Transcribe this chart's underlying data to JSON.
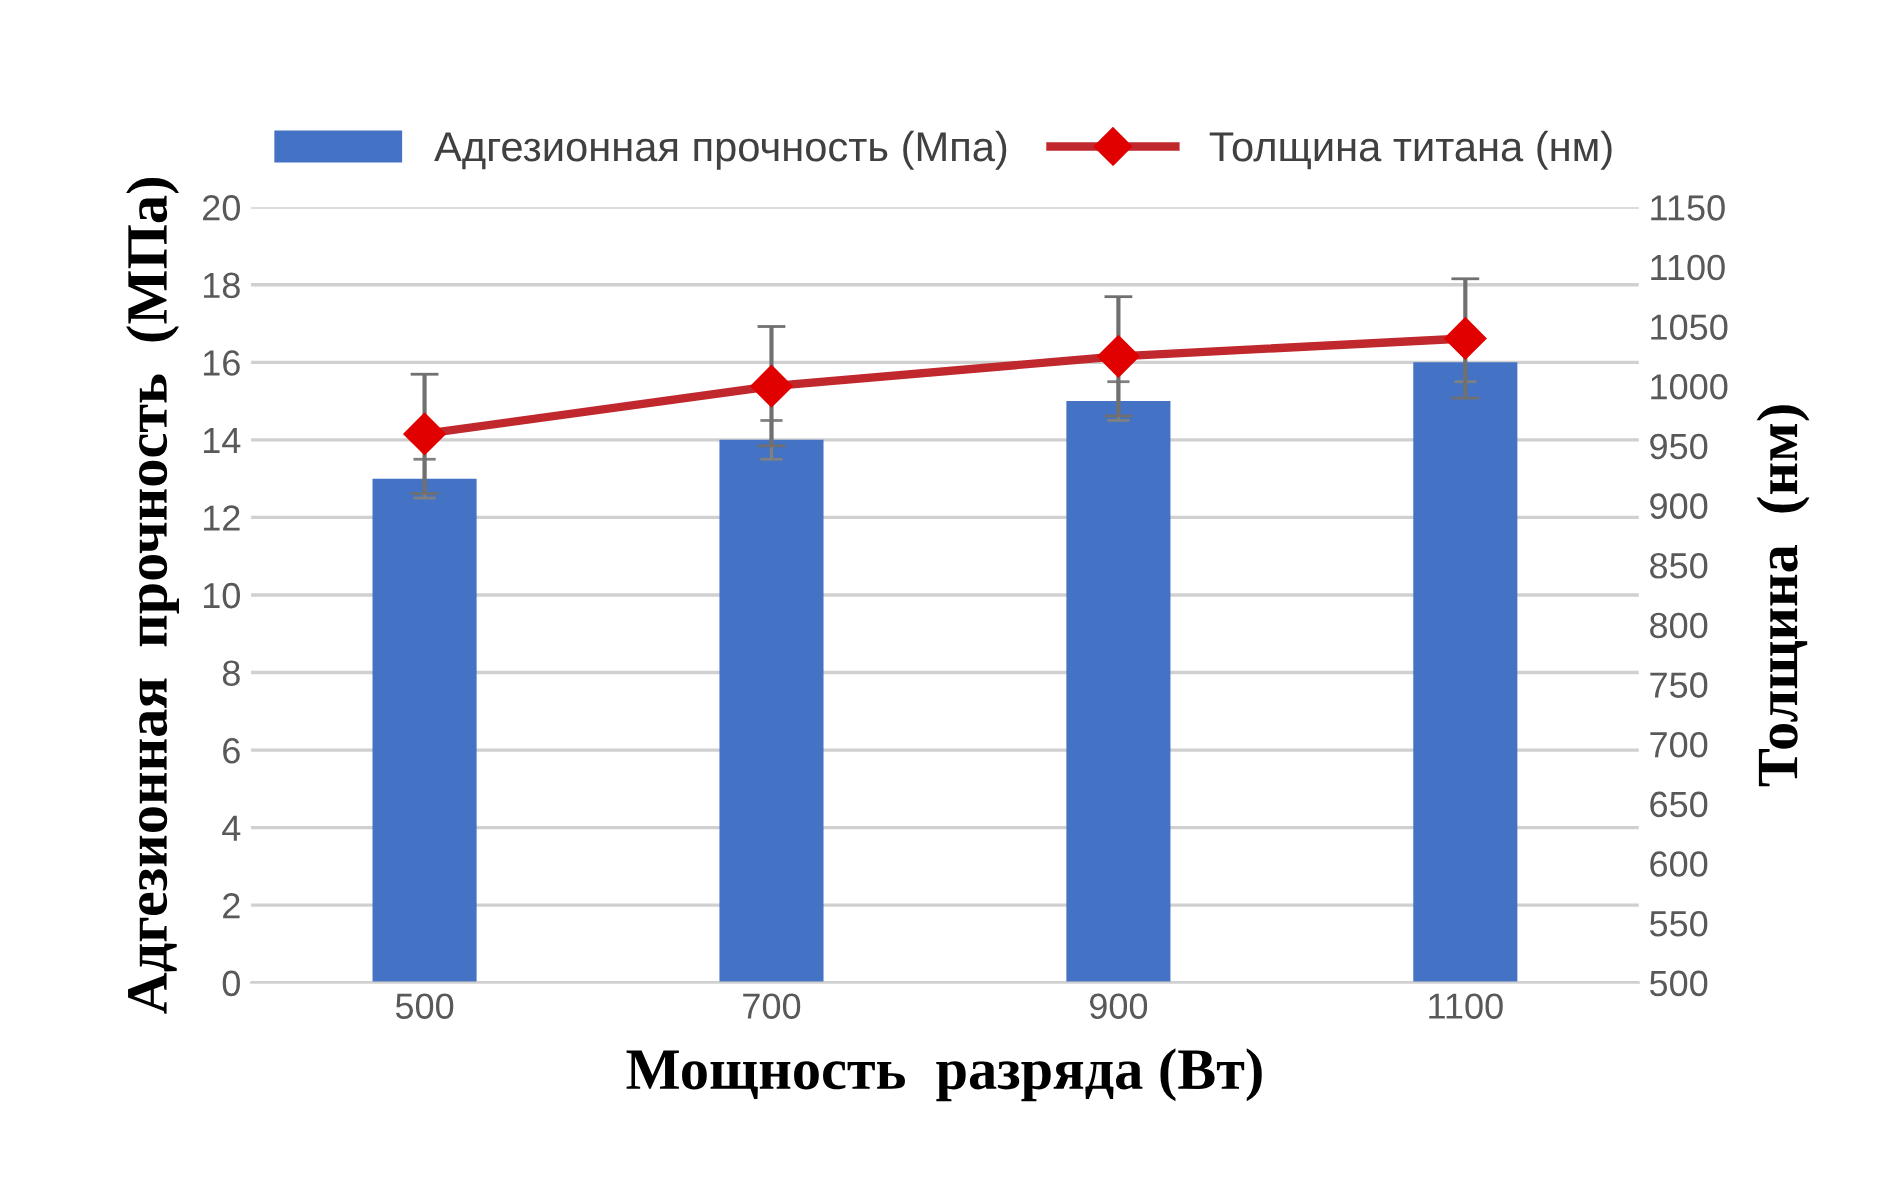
{
  "chart_data": {
    "type": "bar",
    "xlabel": "Мощность  разряда (Вт)",
    "ylabel": "Адгезионная  прочность  (МПа)",
    "y2label": "Толщина  (нм)",
    "categories": [
      "500",
      "700",
      "900",
      "1100"
    ],
    "series": [
      {
        "name": "Адгезионная прочность (Мпа)",
        "color": "#4472c4",
        "values": [
          13,
          14,
          15,
          16
        ],
        "errors": [
          0.5,
          0.5,
          0.5,
          0.5
        ]
      },
      {
        "name": "Толщина титана (нм)",
        "type": "line",
        "axis": "y2",
        "color": "#c0282d",
        "marker": "diamond",
        "values": [
          960,
          1000,
          1025,
          1040
        ],
        "errors": [
          50,
          50,
          50,
          50
        ]
      }
    ],
    "ylim": [
      0,
      20
    ],
    "yticks": [
      0,
      2,
      4,
      6,
      8,
      10,
      12,
      14,
      16,
      18,
      20
    ],
    "y2lim": [
      500,
      1150
    ],
    "y2ticks": [
      500,
      550,
      600,
      650,
      700,
      750,
      800,
      850,
      900,
      950,
      1000,
      1050,
      1100,
      1150
    ],
    "grid": "y",
    "legend": "top"
  }
}
